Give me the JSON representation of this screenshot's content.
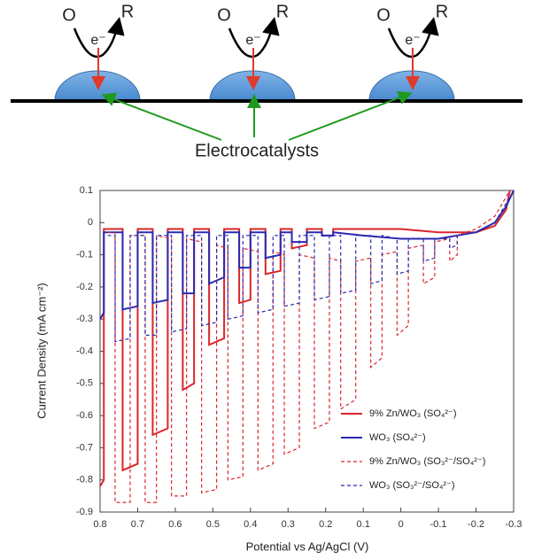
{
  "diagram": {
    "units": [
      {
        "oxidant": "O",
        "reductant": "R",
        "electron": "e⁻"
      },
      {
        "oxidant": "O",
        "reductant": "R",
        "electron": "e⁻"
      },
      {
        "oxidant": "O",
        "reductant": "R",
        "electron": "e⁻"
      }
    ],
    "label": "Electrocatalysts"
  },
  "chart_data": {
    "type": "line",
    "xlabel": "Potential vs Ag/AgCl (V)",
    "ylabel": "Current Density (mA cm⁻²)",
    "xlim": [
      0.8,
      -0.3
    ],
    "ylim": [
      -0.9,
      0.1
    ],
    "xticks": [
      0.8,
      0.7,
      0.6,
      0.5,
      0.4,
      0.3,
      0.2,
      0.1,
      0,
      -0.1,
      -0.2,
      -0.3
    ],
    "yticks": [
      0.1,
      0,
      -0.1,
      -0.2,
      -0.3,
      -0.4,
      -0.5,
      -0.6,
      -0.7,
      -0.8,
      -0.9
    ],
    "legend": "lower right",
    "series": [
      {
        "name": "9% Zn/WO₃ (SO₄²⁻)",
        "color": "#d9262b",
        "style": "solid",
        "x": [
          0.8,
          0.79,
          0.79,
          0.74,
          0.74,
          0.7,
          0.7,
          0.66,
          0.66,
          0.62,
          0.62,
          0.58,
          0.58,
          0.55,
          0.55,
          0.51,
          0.51,
          0.47,
          0.47,
          0.43,
          0.43,
          0.4,
          0.4,
          0.36,
          0.36,
          0.32,
          0.32,
          0.29,
          0.29,
          0.25,
          0.25,
          0.21,
          0.21,
          0.18,
          0.18,
          0.1,
          0.0,
          -0.1,
          -0.2,
          -0.25,
          -0.28,
          -0.29
        ],
        "values": [
          -0.82,
          -0.8,
          -0.02,
          -0.02,
          -0.77,
          -0.75,
          -0.02,
          -0.02,
          -0.66,
          -0.64,
          -0.02,
          -0.02,
          -0.52,
          -0.5,
          -0.02,
          -0.02,
          -0.38,
          -0.36,
          -0.02,
          -0.02,
          -0.25,
          -0.24,
          -0.02,
          -0.02,
          -0.16,
          -0.15,
          -0.02,
          -0.02,
          -0.08,
          -0.07,
          -0.02,
          -0.02,
          -0.04,
          -0.04,
          -0.02,
          -0.02,
          -0.02,
          -0.03,
          -0.03,
          -0.01,
          0.04,
          0.1
        ]
      },
      {
        "name": "WO₃ (SO₄²⁻)",
        "color": "#2a2ab0",
        "style": "solid",
        "x": [
          0.8,
          0.79,
          0.79,
          0.74,
          0.74,
          0.7,
          0.7,
          0.66,
          0.66,
          0.62,
          0.62,
          0.58,
          0.58,
          0.55,
          0.55,
          0.51,
          0.51,
          0.47,
          0.47,
          0.43,
          0.43,
          0.4,
          0.4,
          0.36,
          0.36,
          0.32,
          0.32,
          0.29,
          0.29,
          0.25,
          0.25,
          0.21,
          0.21,
          0.18,
          0.18,
          0.1,
          0.0,
          -0.1,
          -0.2,
          -0.25,
          -0.28,
          -0.3
        ],
        "values": [
          -0.3,
          -0.28,
          -0.03,
          -0.03,
          -0.27,
          -0.26,
          -0.03,
          -0.03,
          -0.25,
          -0.24,
          -0.03,
          -0.03,
          -0.22,
          -0.22,
          -0.03,
          -0.03,
          -0.19,
          -0.17,
          -0.03,
          -0.03,
          -0.14,
          -0.14,
          -0.03,
          -0.03,
          -0.11,
          -0.1,
          -0.03,
          -0.03,
          -0.06,
          -0.06,
          -0.03,
          -0.03,
          -0.04,
          -0.04,
          -0.03,
          -0.04,
          -0.05,
          -0.05,
          -0.03,
          0.0,
          0.05,
          0.1
        ]
      },
      {
        "name": "9% Zn/WO₃ (SO₃²⁻/SO₄²⁻)",
        "color": "#d9262b",
        "style": "dashed",
        "x": [
          0.78,
          0.76,
          0.76,
          0.72,
          0.72,
          0.68,
          0.68,
          0.65,
          0.65,
          0.61,
          0.61,
          0.57,
          0.57,
          0.53,
          0.53,
          0.49,
          0.49,
          0.46,
          0.46,
          0.42,
          0.42,
          0.38,
          0.38,
          0.34,
          0.34,
          0.31,
          0.31,
          0.27,
          0.27,
          0.23,
          0.23,
          0.19,
          0.19,
          0.16,
          0.16,
          0.12,
          0.12,
          0.08,
          0.08,
          0.05,
          0.05,
          0.01,
          0.01,
          -0.02,
          -0.02,
          -0.06,
          -0.06,
          -0.09,
          -0.09,
          -0.13,
          -0.13,
          -0.15,
          -0.15,
          -0.2,
          -0.25,
          -0.29
        ],
        "values": [
          -0.03,
          -0.03,
          -0.87,
          -0.87,
          -0.04,
          -0.04,
          -0.87,
          -0.87,
          -0.04,
          -0.05,
          -0.85,
          -0.85,
          -0.05,
          -0.06,
          -0.84,
          -0.83,
          -0.07,
          -0.08,
          -0.8,
          -0.79,
          -0.08,
          -0.09,
          -0.77,
          -0.75,
          -0.09,
          -0.1,
          -0.72,
          -0.7,
          -0.1,
          -0.11,
          -0.64,
          -0.62,
          -0.11,
          -0.12,
          -0.58,
          -0.55,
          -0.12,
          -0.11,
          -0.45,
          -0.42,
          -0.1,
          -0.09,
          -0.35,
          -0.32,
          -0.08,
          -0.07,
          -0.19,
          -0.17,
          -0.06,
          -0.05,
          -0.12,
          -0.1,
          -0.04,
          -0.02,
          0.02,
          0.1
        ]
      },
      {
        "name": "WO₃ (SO₃²⁻/SO₄²⁻)",
        "color": "#2a2ab0",
        "style": "dashed",
        "x": [
          0.78,
          0.76,
          0.76,
          0.72,
          0.72,
          0.68,
          0.68,
          0.65,
          0.65,
          0.61,
          0.61,
          0.57,
          0.57,
          0.53,
          0.53,
          0.49,
          0.49,
          0.46,
          0.46,
          0.42,
          0.42,
          0.38,
          0.38,
          0.34,
          0.34,
          0.31,
          0.31,
          0.27,
          0.27,
          0.23,
          0.23,
          0.19,
          0.19,
          0.16,
          0.16,
          0.12,
          0.12,
          0.08,
          0.08,
          0.05,
          0.05,
          0.01,
          0.01,
          -0.02,
          -0.02,
          -0.06,
          -0.06,
          -0.09,
          -0.09,
          -0.13,
          -0.13,
          -0.15,
          -0.15,
          -0.2,
          -0.25,
          -0.3
        ],
        "values": [
          -0.04,
          -0.04,
          -0.37,
          -0.36,
          -0.04,
          -0.04,
          -0.35,
          -0.35,
          -0.04,
          -0.04,
          -0.34,
          -0.33,
          -0.04,
          -0.04,
          -0.32,
          -0.31,
          -0.04,
          -0.04,
          -0.3,
          -0.29,
          -0.04,
          -0.04,
          -0.28,
          -0.27,
          -0.04,
          -0.04,
          -0.26,
          -0.25,
          -0.04,
          -0.04,
          -0.24,
          -0.23,
          -0.04,
          -0.04,
          -0.22,
          -0.21,
          -0.04,
          -0.04,
          -0.19,
          -0.18,
          -0.04,
          -0.05,
          -0.16,
          -0.15,
          -0.05,
          -0.05,
          -0.12,
          -0.11,
          -0.05,
          -0.05,
          -0.08,
          -0.07,
          -0.04,
          -0.03,
          0.0,
          0.1
        ]
      }
    ]
  }
}
